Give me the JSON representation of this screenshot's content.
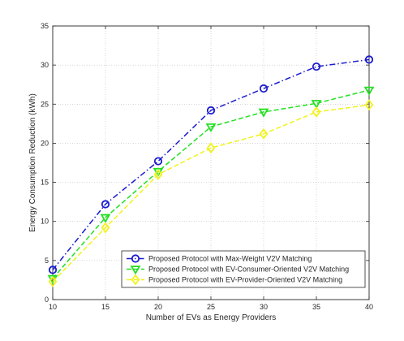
{
  "chart_data": {
    "type": "line",
    "title": "",
    "xlabel": "Number of EVs as Energy Providers",
    "ylabel": "Energy Consumption Reduction (kWh)",
    "x": [
      10,
      15,
      20,
      25,
      30,
      35,
      40
    ],
    "xticks": [
      "10",
      "15",
      "20",
      "25",
      "30",
      "35",
      "40"
    ],
    "yticks": [
      "0",
      "5",
      "10",
      "15",
      "20",
      "25",
      "30",
      "35"
    ],
    "xlim": [
      10,
      40
    ],
    "ylim": [
      0,
      35
    ],
    "grid": true,
    "legend_position": "bottom-right",
    "series": [
      {
        "name": "Proposed Protocol with Max-Weight V2V Matching",
        "values": [
          3.8,
          12.2,
          17.7,
          24.2,
          27.0,
          29.8,
          30.7
        ],
        "color": "#1a1ad0",
        "marker": "circle",
        "line": "dash-dot"
      },
      {
        "name": "Proposed Protocol with EV-Consumer-Oriented V2V Matching",
        "values": [
          2.7,
          10.5,
          16.4,
          22.1,
          24.0,
          25.1,
          26.8
        ],
        "color": "#22e022",
        "marker": "triangle-down",
        "line": "dashed"
      },
      {
        "name": "Proposed Protocol with EV-Provider-Oriented V2V Matching",
        "values": [
          2.3,
          9.2,
          16.0,
          19.4,
          21.2,
          24.0,
          24.9
        ],
        "color": "#f2f21a",
        "marker": "diamond",
        "line": "dashed"
      }
    ]
  }
}
